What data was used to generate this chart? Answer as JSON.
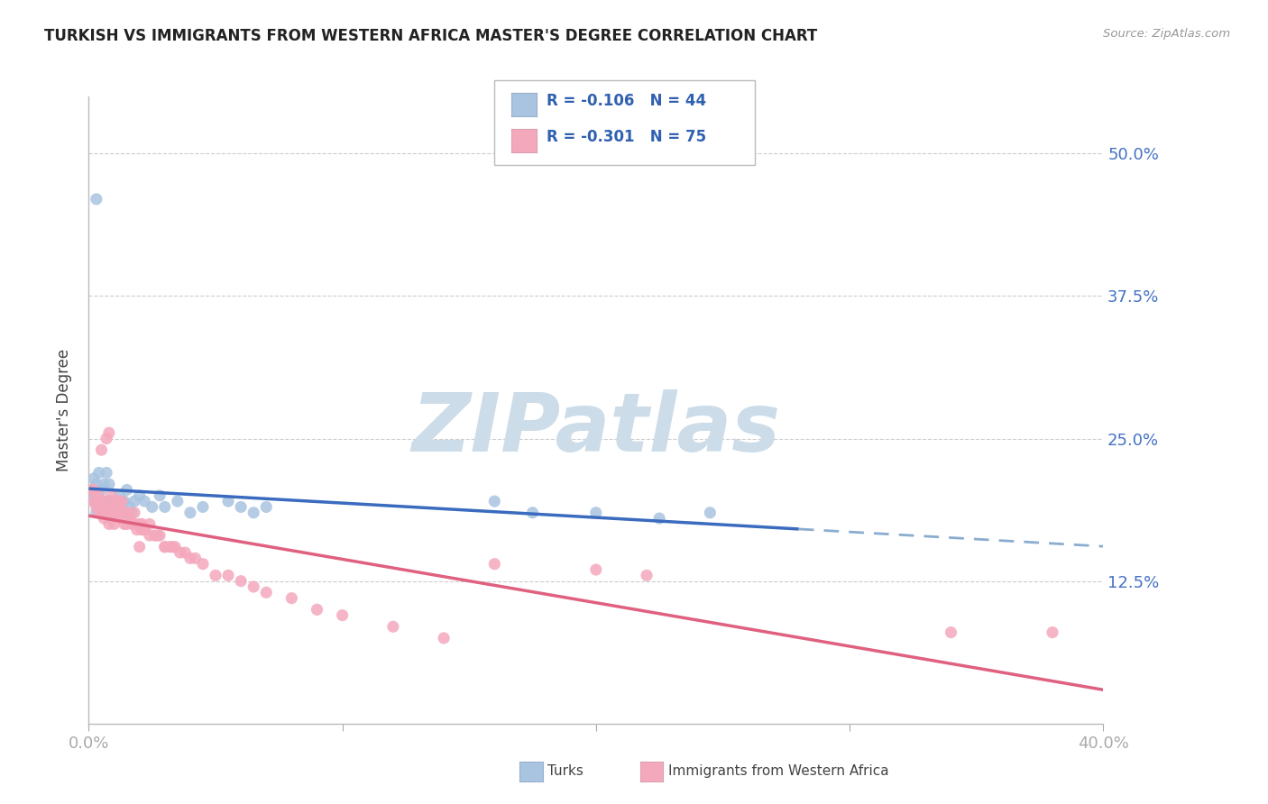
{
  "title": "TURKISH VS IMMIGRANTS FROM WESTERN AFRICA MASTER'S DEGREE CORRELATION CHART",
  "source": "Source: ZipAtlas.com",
  "ylabel": "Master's Degree",
  "x_min": 0.0,
  "x_max": 0.4,
  "y_min": 0.0,
  "y_max": 0.55,
  "y_ticks": [
    0.125,
    0.25,
    0.375,
    0.5
  ],
  "y_tick_labels": [
    "12.5%",
    "25.0%",
    "37.5%",
    "50.0%"
  ],
  "x_ticks": [
    0.0,
    0.1,
    0.2,
    0.3,
    0.4
  ],
  "x_tick_labels": [
    "0.0%",
    "",
    "",
    "",
    "40.0%"
  ],
  "r_turks": -0.106,
  "n_turks": 44,
  "r_africa": -0.301,
  "n_africa": 75,
  "blue_scatter": "#a8c4e0",
  "pink_scatter": "#f4a8bc",
  "blue_line": "#3a6bbf",
  "pink_line": "#e06080",
  "blue_dashed": "#8aaccf",
  "watermark_text": "ZIPatlas",
  "watermark_color": "#ccdce8",
  "title_color": "#222222",
  "source_color": "#999999",
  "ylabel_color": "#444444",
  "tick_color": "#4472c4",
  "grid_color": "#cccccc",
  "legend_text_color": "#3060b0",
  "turks_x": [
    0.001,
    0.002,
    0.002,
    0.003,
    0.003,
    0.004,
    0.004,
    0.005,
    0.005,
    0.006,
    0.006,
    0.007,
    0.007,
    0.008,
    0.008,
    0.009,
    0.01,
    0.01,
    0.011,
    0.012,
    0.013,
    0.014,
    0.015,
    0.016,
    0.017,
    0.018,
    0.02,
    0.022,
    0.025,
    0.028,
    0.03,
    0.035,
    0.04,
    0.045,
    0.055,
    0.06,
    0.065,
    0.07,
    0.16,
    0.175,
    0.2,
    0.225,
    0.245,
    0.003
  ],
  "turks_y": [
    0.2,
    0.195,
    0.215,
    0.185,
    0.21,
    0.22,
    0.19,
    0.205,
    0.195,
    0.21,
    0.19,
    0.185,
    0.22,
    0.195,
    0.21,
    0.195,
    0.19,
    0.185,
    0.195,
    0.2,
    0.195,
    0.195,
    0.205,
    0.19,
    0.185,
    0.195,
    0.2,
    0.195,
    0.19,
    0.2,
    0.19,
    0.195,
    0.185,
    0.19,
    0.195,
    0.19,
    0.185,
    0.19,
    0.195,
    0.185,
    0.185,
    0.18,
    0.185,
    0.46
  ],
  "africa_x": [
    0.001,
    0.002,
    0.002,
    0.003,
    0.003,
    0.004,
    0.004,
    0.005,
    0.005,
    0.006,
    0.006,
    0.007,
    0.007,
    0.008,
    0.008,
    0.009,
    0.009,
    0.01,
    0.01,
    0.011,
    0.011,
    0.012,
    0.012,
    0.013,
    0.013,
    0.014,
    0.014,
    0.015,
    0.015,
    0.016,
    0.017,
    0.018,
    0.019,
    0.02,
    0.021,
    0.022,
    0.024,
    0.026,
    0.028,
    0.03,
    0.032,
    0.034,
    0.036,
    0.038,
    0.04,
    0.042,
    0.045,
    0.05,
    0.055,
    0.06,
    0.065,
    0.07,
    0.08,
    0.09,
    0.1,
    0.12,
    0.14,
    0.16,
    0.005,
    0.007,
    0.009,
    0.012,
    0.015,
    0.018,
    0.021,
    0.024,
    0.027,
    0.03,
    0.033,
    0.2,
    0.22,
    0.34,
    0.38,
    0.008,
    0.02
  ],
  "africa_y": [
    0.205,
    0.195,
    0.205,
    0.19,
    0.195,
    0.185,
    0.2,
    0.185,
    0.195,
    0.18,
    0.19,
    0.185,
    0.195,
    0.175,
    0.185,
    0.18,
    0.19,
    0.175,
    0.185,
    0.185,
    0.195,
    0.18,
    0.19,
    0.185,
    0.195,
    0.175,
    0.185,
    0.175,
    0.185,
    0.18,
    0.175,
    0.175,
    0.17,
    0.175,
    0.17,
    0.17,
    0.165,
    0.165,
    0.165,
    0.155,
    0.155,
    0.155,
    0.15,
    0.15,
    0.145,
    0.145,
    0.14,
    0.13,
    0.13,
    0.125,
    0.12,
    0.115,
    0.11,
    0.1,
    0.095,
    0.085,
    0.075,
    0.14,
    0.24,
    0.25,
    0.2,
    0.195,
    0.185,
    0.185,
    0.175,
    0.175,
    0.165,
    0.155,
    0.155,
    0.135,
    0.13,
    0.08,
    0.08,
    0.255,
    0.155
  ]
}
